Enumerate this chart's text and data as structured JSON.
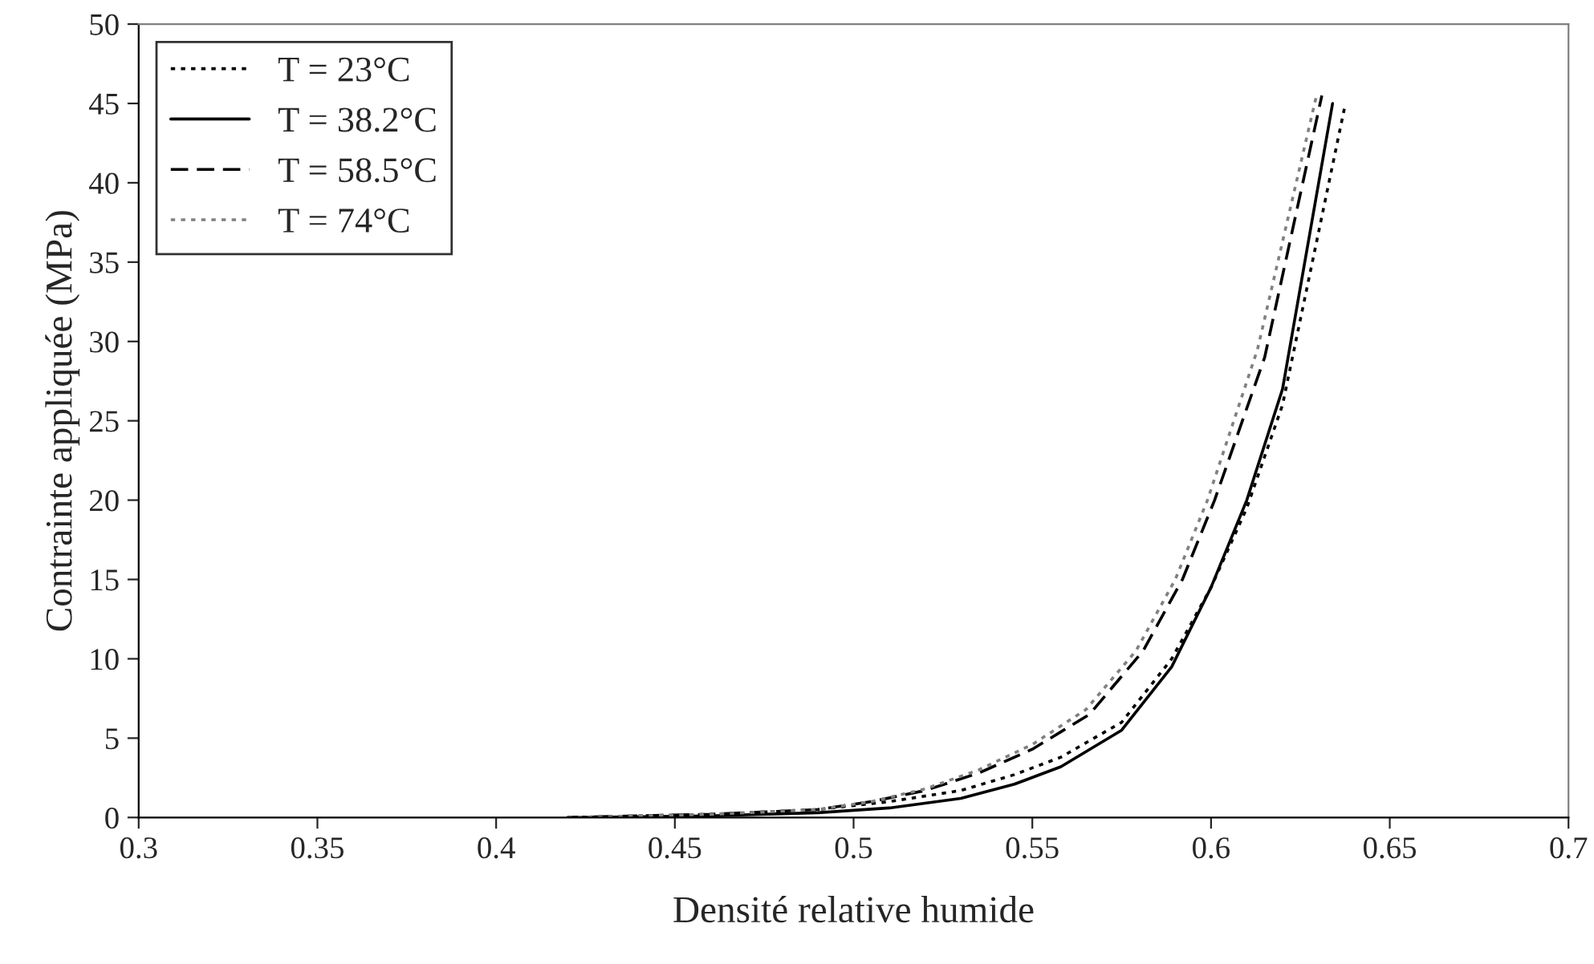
{
  "chart_data": {
    "type": "line",
    "xlabel": "Densité relative humide",
    "ylabel": "Contrainte appliquée (MPa)",
    "xlim": [
      0.3,
      0.7
    ],
    "xticks": [
      0.3,
      0.35,
      0.4,
      0.45,
      0.5,
      0.55,
      0.6,
      0.65,
      0.7
    ],
    "ylim": [
      0,
      50
    ],
    "yticks": [
      0,
      5,
      10,
      15,
      20,
      25,
      30,
      35,
      40,
      45,
      50
    ],
    "grid": false,
    "legend": "top left",
    "series": [
      {
        "name": "T = 23°C",
        "color": "#000000",
        "line_style": "dotted",
        "x": [
          0.42,
          0.46,
          0.49,
          0.51,
          0.53,
          0.545,
          0.558,
          0.575,
          0.589,
          0.6,
          0.61,
          0.62,
          0.6376
        ],
        "values": [
          0,
          0.2,
          0.5,
          1,
          1.7,
          2.7,
          3.8,
          6,
          10,
          14.5,
          19.5,
          26,
          45
        ]
      },
      {
        "name": "T = 38.2°C",
        "color": "#000000",
        "line_style": "solid",
        "x": [
          0.42,
          0.46,
          0.49,
          0.51,
          0.53,
          0.545,
          0.558,
          0.575,
          0.589,
          0.6,
          0.61,
          0.62,
          0.634
        ],
        "values": [
          0,
          0.1,
          0.3,
          0.6,
          1.2,
          2.1,
          3.2,
          5.5,
          9.5,
          14.5,
          20,
          27,
          45
        ]
      },
      {
        "name": "T = 58.5°C",
        "color": "#000000",
        "line_style": "dashed",
        "x": [
          0.42,
          0.46,
          0.49,
          0.505,
          0.52,
          0.535,
          0.55,
          0.566,
          0.581,
          0.592,
          0.601,
          0.615,
          0.631
        ],
        "values": [
          0,
          0.2,
          0.5,
          1,
          1.7,
          2.8,
          4.3,
          6.5,
          10.5,
          15,
          20,
          29,
          45.5
        ]
      },
      {
        "name": "T = 74°C",
        "color": "#808080",
        "line_style": "dotted",
        "x": [
          0.42,
          0.46,
          0.49,
          0.505,
          0.52,
          0.535,
          0.55,
          0.565,
          0.579,
          0.59,
          0.599,
          0.613,
          0.6295
        ],
        "values": [
          0,
          0.2,
          0.5,
          1,
          1.8,
          3,
          4.6,
          6.8,
          10.5,
          15,
          20,
          29.5,
          45.5
        ]
      }
    ]
  }
}
